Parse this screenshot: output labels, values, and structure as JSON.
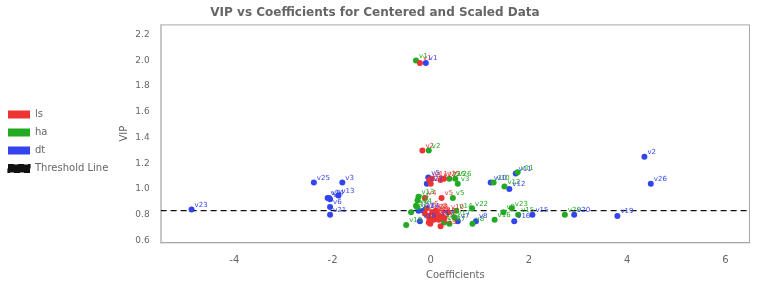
{
  "chart_data": {
    "type": "scatter",
    "title": "VIP vs Coefficients for Centered and Scaled Data",
    "xlabel": "Coefficients",
    "ylabel": "VIP",
    "xlim": [
      -5.5,
      6.5
    ],
    "ylim": [
      0.58,
      2.28
    ],
    "xticks": [
      -4,
      -2,
      0,
      2,
      4,
      6
    ],
    "yticks": [
      0.6,
      0.8,
      {
        "value": 1.0,
        "label": "1.0"
      },
      1.2,
      1.4,
      1.6,
      1.8,
      {
        "value": 2.0,
        "label": "2.0"
      },
      2.2
    ],
    "grid": false,
    "legend": "left",
    "series": [
      {
        "name": "ls",
        "color": "#EE3333",
        "x": [
          -0.22,
          -0.17,
          -0.03,
          -0.12,
          0.22,
          -0.08,
          0.28,
          0.1,
          0.12,
          0.35,
          0.02,
          -0.04,
          -0.05,
          0.07,
          0.18,
          -0.01,
          0.06,
          -0.01,
          0.2,
          0.16,
          -0.03,
          0.03,
          0.08,
          -0.12,
          0.27,
          0.0,
          0.2
        ],
        "values": [
          1.98,
          1.3,
          1.07,
          0.93,
          0.93,
          0.85,
          0.775,
          0.83,
          0.81,
          0.82,
          1.08,
          0.74,
          0.79,
          0.77,
          0.79,
          0.73,
          0.76,
          0.74,
          0.71,
          0.76,
          0.775,
          0.82,
          0.8,
          0.81,
          1.08,
          1.04,
          1.07
        ],
        "labels": [
          "v1",
          "v2",
          "v3",
          "v4",
          "v5",
          "v6",
          "v7",
          "v8",
          "v9",
          "v10",
          "v11",
          "v12",
          "v13",
          "v14",
          "v15",
          "v16",
          "v17",
          "v18",
          "v19",
          "v20",
          "v21",
          "v22",
          "v23",
          "v24",
          "v25",
          "v26",
          "v27"
        ]
      },
      {
        "name": "ha",
        "color": "#22AA22",
        "x": [
          -0.3,
          -0.04,
          0.55,
          -0.27,
          0.45,
          -0.28,
          0.25,
          0.85,
          1.48,
          1.28,
          1.77,
          1.5,
          -0.25,
          0.52,
          1.78,
          1.3,
          0.48,
          0.27,
          -0.5,
          2.73,
          -0.4,
          0.84,
          1.65,
          -0.3,
          0.38,
          0.5,
          0.38
        ],
        "values": [
          2.0,
          1.3,
          1.04,
          0.91,
          0.93,
          0.86,
          0.76,
          0.73,
          0.82,
          1.05,
          1.13,
          1.02,
          0.94,
          0.83,
          0.8,
          0.76,
          0.78,
          0.74,
          0.72,
          0.8,
          0.82,
          0.85,
          0.85,
          0.87,
          1.08,
          1.08,
          0.73
        ],
        "labels": [
          "v1",
          "v2",
          "v3",
          "v4",
          "v5",
          "v6",
          "v7",
          "v8",
          "v9",
          "v10",
          "v11",
          "v12",
          "v13",
          "v14",
          "v15",
          "v16",
          "v17",
          "v18",
          "v19",
          "v20",
          "v21",
          "v22",
          "v23",
          "v24",
          "v25",
          "v26",
          "v27"
        ]
      },
      {
        "name": "dt",
        "color": "#3344EE",
        "x": [
          -0.1,
          4.35,
          -1.8,
          -2.05,
          -0.05,
          -2.05,
          0.55,
          0.92,
          -2.07,
          1.22,
          1.73,
          1.6,
          -1.88,
          -0.15,
          2.07,
          1.7,
          0.15,
          -0.22,
          3.8,
          2.92,
          -2.05,
          -0.25,
          -4.87,
          -2.1,
          -2.38,
          4.48,
          -0.08
        ],
        "values": [
          1.98,
          1.25,
          1.05,
          0.92,
          1.09,
          0.86,
          0.75,
          0.75,
          0.93,
          1.05,
          1.12,
          1.0,
          0.95,
          0.83,
          0.8,
          0.75,
          0.78,
          0.75,
          0.79,
          0.8,
          0.8,
          0.83,
          0.84,
          0.93,
          1.05,
          1.04,
          1.04
        ],
        "labels": [
          "v1",
          "v2",
          "v3",
          "v4",
          "v5",
          "v6",
          "v7",
          "v8",
          "v9",
          "v10",
          "v11",
          "v12",
          "v13",
          "v14",
          "v15",
          "v16",
          "v17",
          "v18",
          "v19",
          "v20",
          "v21",
          "v22",
          "v23",
          "v24",
          "v25",
          "v26",
          "v27"
        ]
      }
    ],
    "annotations": [
      {
        "type": "hline",
        "y": 0.831,
        "label": "Threshold Line",
        "color": "#111111",
        "line_style": "dashed"
      }
    ]
  }
}
